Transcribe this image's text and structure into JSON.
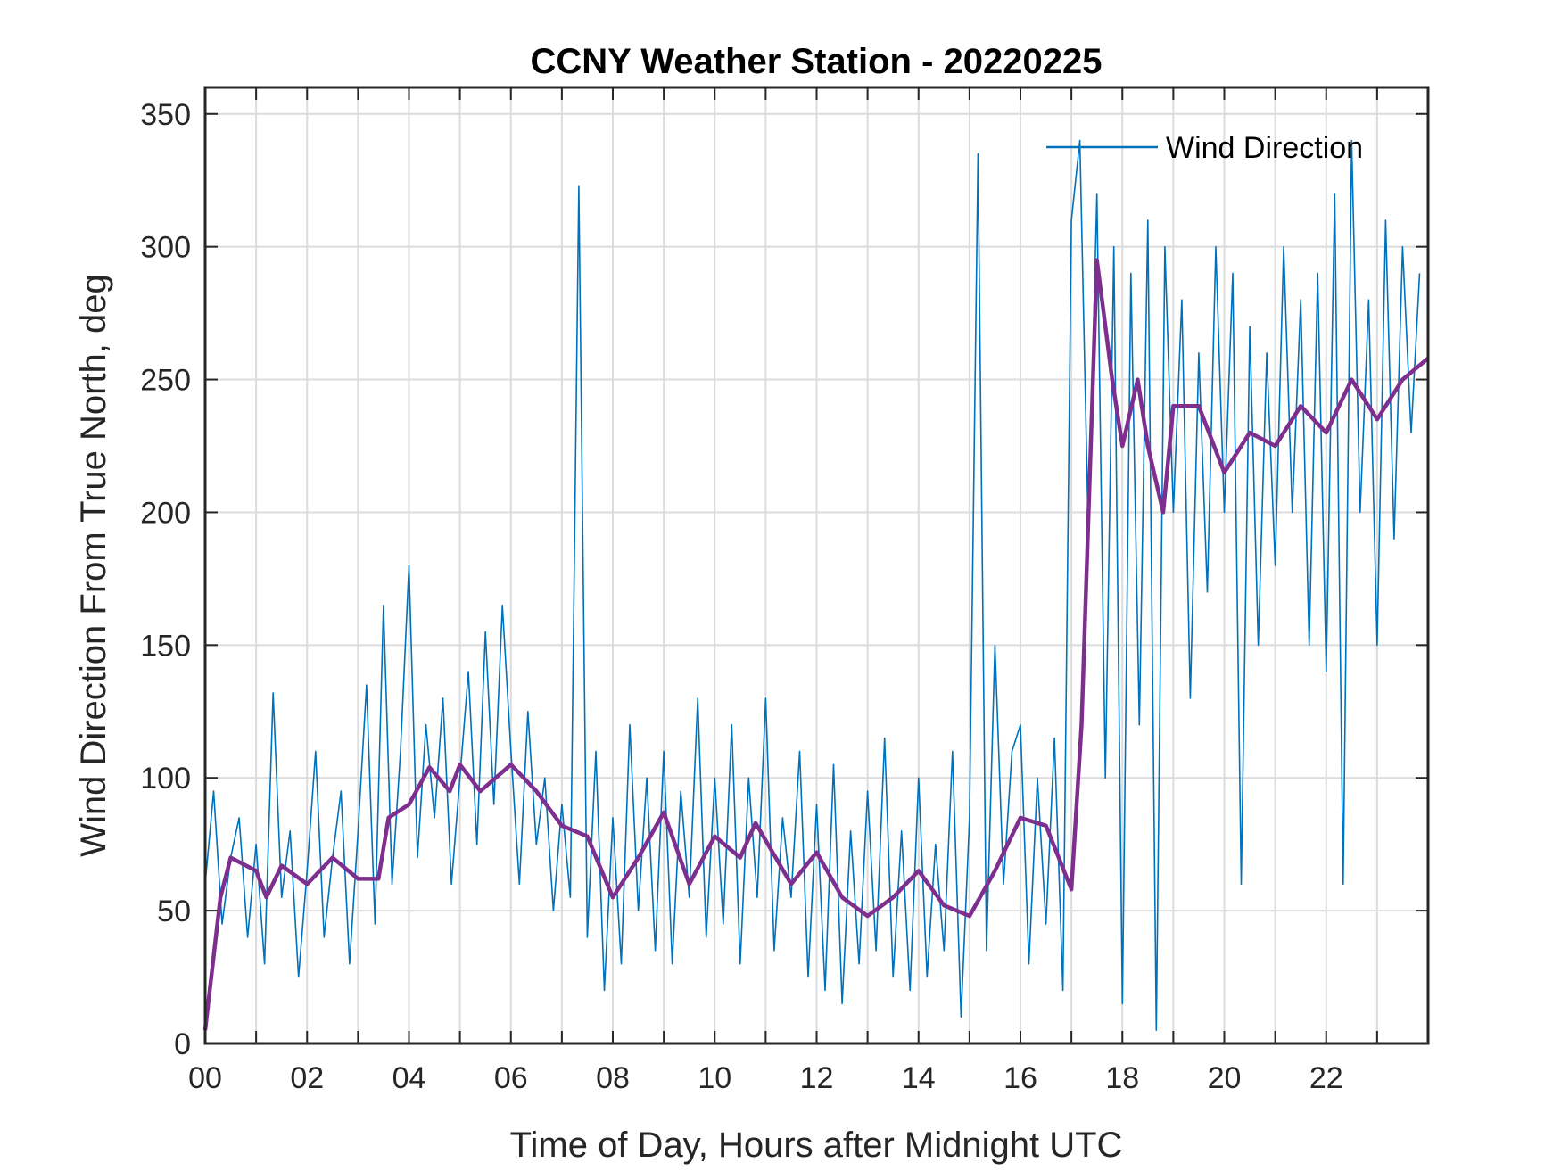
{
  "chart_data": {
    "type": "line",
    "title": "CCNY Weather Station - 20220225",
    "xlabel": "Time of Day, Hours after Midnight UTC",
    "ylabel": "Wind Direction From True North, deg",
    "xlim": [
      0,
      24
    ],
    "ylim": [
      0,
      360
    ],
    "xticks": [
      0,
      2,
      4,
      6,
      8,
      10,
      12,
      14,
      16,
      18,
      20,
      22
    ],
    "xtick_labels": [
      "00",
      "02",
      "04",
      "06",
      "08",
      "10",
      "12",
      "14",
      "16",
      "18",
      "20",
      "22"
    ],
    "yticks": [
      0,
      50,
      100,
      150,
      200,
      250,
      300,
      350
    ],
    "ytick_labels": [
      "0",
      "50",
      "100",
      "150",
      "200",
      "250",
      "300",
      "350"
    ],
    "grid": true,
    "legend": {
      "placement": "top-right",
      "entries": [
        "Wind Direction"
      ]
    },
    "series": [
      {
        "name": "Wind Direction",
        "color": "#0072bd",
        "x_step_hours": 0.1666667,
        "values": [
          60,
          95,
          45,
          70,
          85,
          40,
          75,
          30,
          132,
          55,
          80,
          25,
          65,
          110,
          40,
          70,
          95,
          30,
          80,
          135,
          45,
          165,
          60,
          110,
          180,
          70,
          120,
          85,
          130,
          60,
          100,
          140,
          75,
          155,
          90,
          165,
          110,
          60,
          125,
          75,
          100,
          50,
          90,
          55,
          323,
          40,
          110,
          20,
          85,
          30,
          120,
          50,
          100,
          35,
          110,
          30,
          95,
          55,
          130,
          40,
          100,
          45,
          120,
          30,
          100,
          55,
          130,
          35,
          85,
          55,
          110,
          25,
          90,
          20,
          105,
          15,
          80,
          30,
          95,
          35,
          115,
          25,
          80,
          20,
          100,
          25,
          75,
          35,
          110,
          10,
          85,
          335,
          35,
          150,
          60,
          110,
          120,
          30,
          100,
          45,
          115,
          20,
          310,
          340,
          190,
          320,
          100,
          300,
          15,
          290,
          120,
          310,
          5,
          300,
          200,
          280,
          130,
          260,
          170,
          300,
          200,
          290,
          60,
          270,
          150,
          260,
          180,
          300,
          200,
          280,
          150,
          290,
          140,
          320,
          60,
          340,
          200,
          280,
          150,
          310,
          190,
          300,
          230,
          290
        ]
      },
      {
        "color": "#7e2f8e",
        "x": [
          0,
          0.3,
          0.5,
          1,
          1.2,
          1.5,
          2,
          2.5,
          3,
          3.4,
          3.6,
          4,
          4.4,
          4.8,
          5,
          5.4,
          6,
          6.5,
          7,
          7.5,
          8,
          8.5,
          9,
          9.5,
          10,
          10.5,
          10.8,
          11.5,
          12,
          12.5,
          13,
          13.5,
          14,
          14.5,
          15,
          15.5,
          16,
          16.5,
          17,
          17.2,
          17.5,
          17.8,
          18,
          18.3,
          18.5,
          18.8,
          19,
          19.5,
          20,
          20.5,
          21,
          21.5,
          22,
          22.5,
          23,
          23.5,
          24
        ],
        "values": [
          5,
          55,
          70,
          65,
          55,
          67,
          60,
          70,
          62,
          62,
          85,
          90,
          104,
          95,
          105,
          95,
          105,
          95,
          82,
          78,
          55,
          70,
          87,
          60,
          78,
          70,
          83,
          60,
          72,
          55,
          48,
          55,
          65,
          52,
          48,
          65,
          85,
          82,
          58,
          120,
          295,
          250,
          225,
          250,
          225,
          200,
          240,
          240,
          215,
          230,
          225,
          240,
          230,
          250,
          235,
          250,
          258
        ]
      }
    ]
  }
}
